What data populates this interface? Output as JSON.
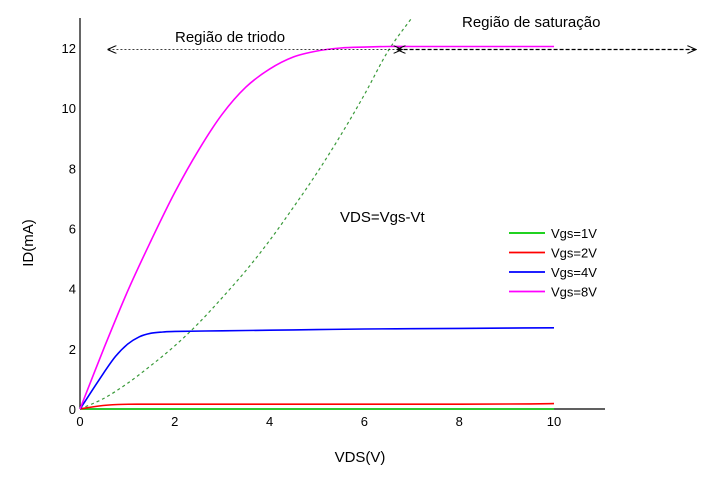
{
  "chart_data": {
    "type": "line",
    "title": "",
    "xlabel": "VDS(V)",
    "ylabel": "ID(mA)",
    "xlim": [
      0,
      11
    ],
    "ylim": [
      0,
      12.8
    ],
    "xticks": [
      0,
      2,
      4,
      6,
      8,
      10
    ],
    "yticks": [
      0,
      2,
      4,
      6,
      8,
      10,
      12
    ],
    "grid": false,
    "legend_position": "right",
    "series": [
      {
        "name": "Vgs=1V",
        "color": "#00cc00",
        "style": "solid",
        "x": [
          0,
          2,
          4,
          6,
          8,
          10
        ],
        "y": [
          0,
          0,
          0,
          0,
          0,
          0
        ]
      },
      {
        "name": "Vgs=2V",
        "color": "#ff0000",
        "style": "solid",
        "x": [
          0,
          0.4,
          0.8,
          1.2,
          2,
          4,
          6,
          8,
          9.5,
          10
        ],
        "y": [
          0,
          0.1,
          0.15,
          0.16,
          0.16,
          0.16,
          0.16,
          0.16,
          0.17,
          0.18
        ]
      },
      {
        "name": "Vgs=4V",
        "color": "#0000ff",
        "style": "solid",
        "x": [
          0,
          0.25,
          0.5,
          0.75,
          1.0,
          1.25,
          1.5,
          1.75,
          2,
          3,
          4,
          5,
          6,
          7,
          8,
          9,
          10
        ],
        "y": [
          0,
          0.6,
          1.2,
          1.75,
          2.15,
          2.4,
          2.52,
          2.56,
          2.58,
          2.6,
          2.62,
          2.64,
          2.66,
          2.67,
          2.68,
          2.69,
          2.7
        ]
      },
      {
        "name": "Vgs=8V",
        "color": "#ff00ff",
        "style": "solid",
        "x": [
          0,
          0.5,
          1,
          1.5,
          2,
          2.5,
          3,
          3.5,
          4,
          4.5,
          5,
          5.5,
          6,
          6.5,
          7,
          8,
          9,
          10
        ],
        "y": [
          0,
          2.0,
          3.9,
          5.6,
          7.2,
          8.6,
          9.8,
          10.7,
          11.3,
          11.7,
          11.9,
          12.0,
          12.03,
          12.05,
          12.05,
          12.05,
          12.05,
          12.05
        ]
      }
    ],
    "boundary": {
      "label": "VDS=Vgs-Vt",
      "color": "#3a9a3a",
      "style": "dashed",
      "x": [
        0,
        0.5,
        1,
        1.5,
        2,
        2.5,
        3,
        3.5,
        4,
        4.5,
        5,
        5.5,
        6,
        6.5,
        7
      ],
      "y": [
        0,
        0.35,
        0.85,
        1.45,
        2.1,
        2.85,
        3.7,
        4.6,
        5.6,
        6.7,
        7.85,
        9.1,
        10.45,
        11.9,
        13.0
      ]
    },
    "annotations": {
      "triode": {
        "label": "Região de triodo",
        "arrow_from": 0.6,
        "arrow_to": 6.8,
        "arrow_y": 11.95
      },
      "saturation": {
        "label": "Região de saturação",
        "arrow_from": 6.7,
        "arrow_to": 13.0,
        "arrow_y": 11.95
      }
    }
  }
}
